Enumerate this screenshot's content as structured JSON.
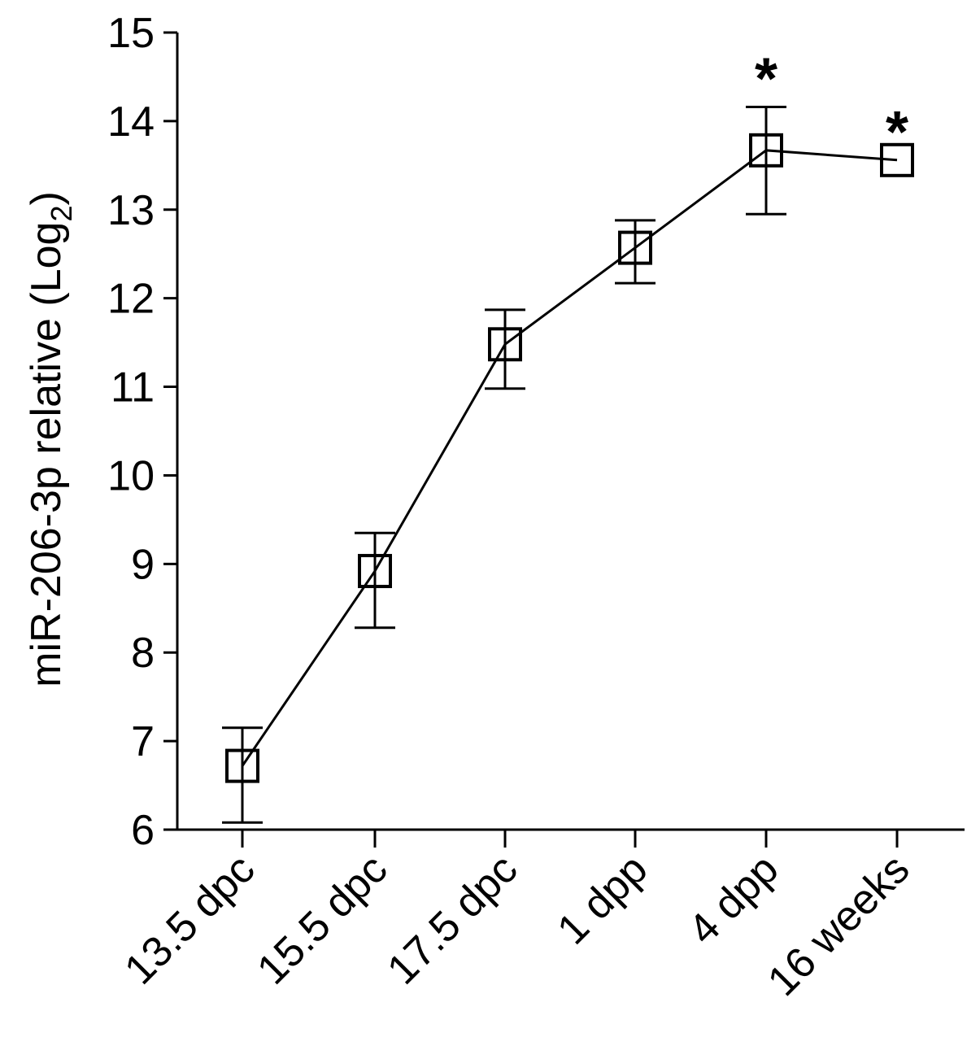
{
  "chart_data": {
    "type": "line",
    "ylabel": "miR-206-3p relative (Log",
    "ylabel_subscript": "2",
    "ylabel_close": ")",
    "categories": [
      "13.5 dpc",
      "15.5 dpc",
      "17.5 dpc",
      "1 dpp",
      "4 dpp",
      "16 weeks"
    ],
    "series": [
      {
        "values": [
          6.72,
          8.92,
          11.48,
          12.57,
          13.67,
          13.56
        ],
        "error_low": [
          6.08,
          8.28,
          10.98,
          12.17,
          12.95,
          13.56
        ],
        "error_high": [
          7.15,
          9.35,
          11.87,
          12.88,
          14.16,
          13.56
        ],
        "marker": "open-square",
        "color": "#000000"
      }
    ],
    "annotations": [
      {
        "category": "4 dpp",
        "text": "*"
      },
      {
        "category": "16 weeks",
        "text": "*"
      }
    ],
    "ylim": [
      6,
      15
    ],
    "yticks": [
      "6",
      "7",
      "8",
      "9",
      "10",
      "11",
      "12",
      "13",
      "14",
      "15"
    ],
    "grid": false,
    "legend": "none"
  }
}
